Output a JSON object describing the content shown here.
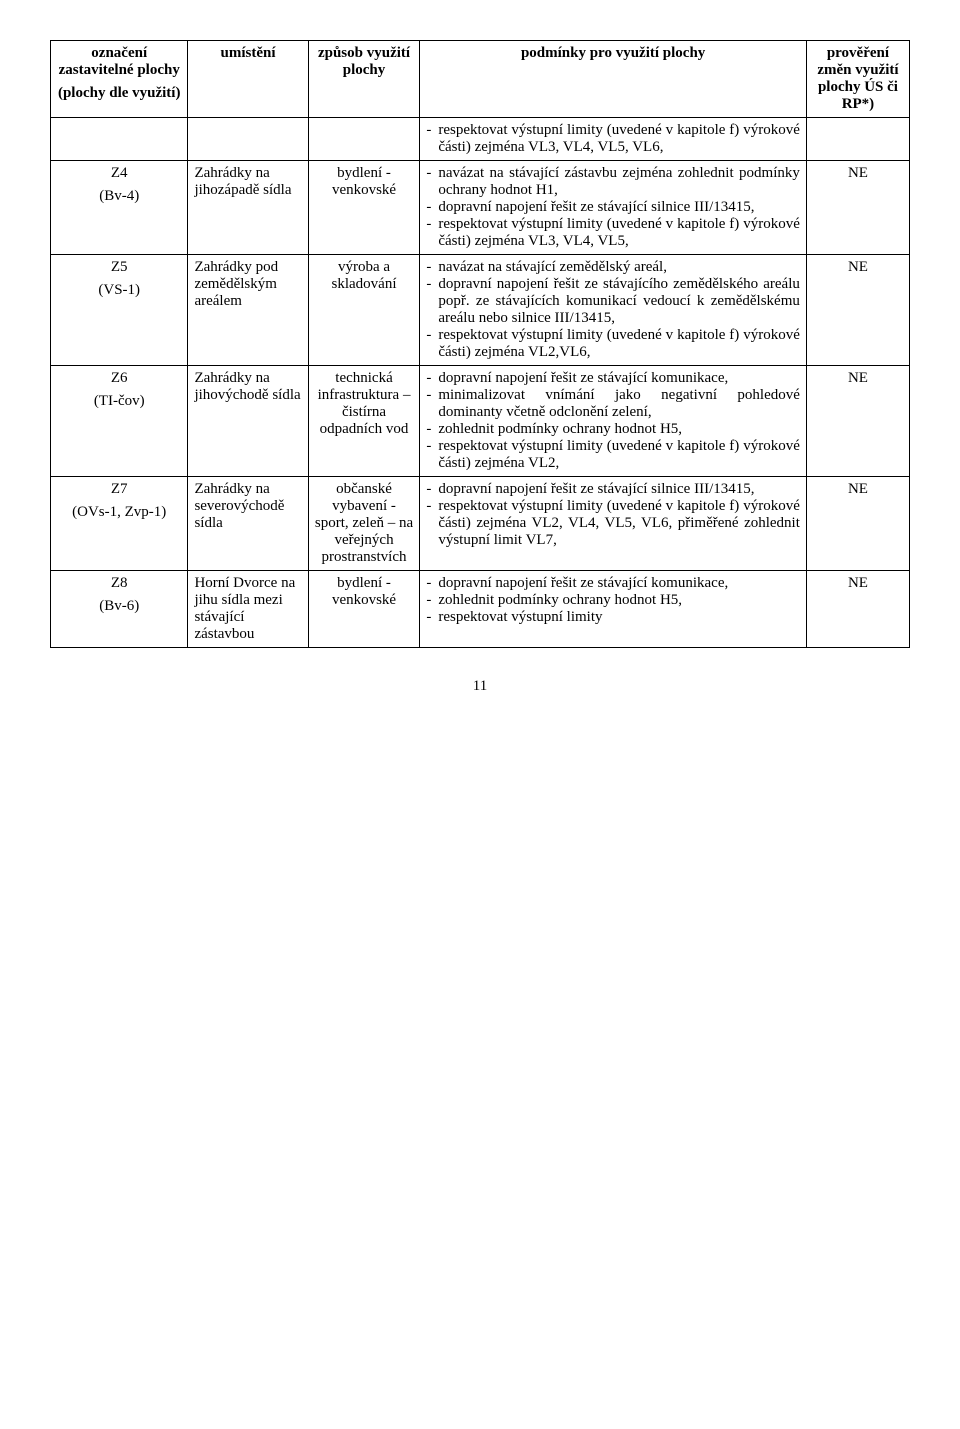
{
  "header": {
    "col1_l1": "označení zastavitelné plochy",
    "col1_l2": "(plochy dle využití)",
    "col2": "umístění",
    "col3": "způsob využití plochy",
    "col4": "podmínky pro využití plochy",
    "col5": "prověření změn využití plochy ÚS či RP*)"
  },
  "rows": [
    {
      "label_main": "",
      "label_sub": "",
      "place": "",
      "use": "",
      "cond": [
        "respektovat výstupní limity (uvedené v kapitole f) výrokové části) zejména VL3, VL4, VL5, VL6,"
      ],
      "check": ""
    },
    {
      "label_main": "Z4",
      "label_sub": "(Bv-4)",
      "place": "Zahrádky na jihozápadě sídla",
      "use": "bydlení - venkovské",
      "cond": [
        "navázat na stávající zástavbu zejména zohlednit podmínky ochrany hodnot H1,",
        "dopravní napojení řešit ze stávající silnice III/13415,",
        "respektovat výstupní limity (uvedené v kapitole f) výrokové části) zejména VL3, VL4, VL5,"
      ],
      "check": "NE"
    },
    {
      "label_main": "Z5",
      "label_sub": "(VS-1)",
      "place": "Zahrádky pod zemědělským areálem",
      "use": "výroba a skladování",
      "cond": [
        "navázat na stávající zemědělský areál,",
        "dopravní napojení řešit ze stávajícího zemědělského areálu popř. ze stávajících komunikací vedoucí k zemědělskému areálu nebo silnice III/13415,",
        "respektovat výstupní limity (uvedené v kapitole f) výrokové části) zejména VL2,VL6,"
      ],
      "check": "NE"
    },
    {
      "label_main": "Z6",
      "label_sub": "(TI-čov)",
      "place": "Zahrádky na jihovýchodě sídla",
      "use": "technická infrastruktura – čistírna odpadních vod",
      "cond": [
        "dopravní napojení řešit ze stávající komunikace,",
        "minimalizovat vnímání jako negativní pohledové dominanty včetně odclonění zelení,",
        "zohlednit podmínky ochrany hodnot H5,",
        "respektovat výstupní limity (uvedené v kapitole f) výrokové části) zejména VL2,"
      ],
      "check": "NE"
    },
    {
      "label_main": "Z7",
      "label_sub": "(OVs-1, Zvp-1)",
      "place": "Zahrádky na severovýchodě sídla",
      "use": "občanské vybavení - sport, zeleň – na veřejných prostranstvích",
      "cond": [
        "dopravní napojení řešit ze stávající silnice III/13415,",
        "respektovat výstupní limity (uvedené v kapitole f) výrokové části) zejména VL2, VL4, VL5, VL6, přiměřené zohlednit výstupní limit VL7,"
      ],
      "check": "NE"
    },
    {
      "label_main": "Z8",
      "label_sub": "(Bv-6)",
      "place": "Horní Dvorce na jihu sídla mezi stávající zástavbou",
      "use": "bydlení - venkovské",
      "cond": [
        "dopravní napojení řešit ze stávající komunikace,",
        "zohlednit podmínky ochrany hodnot H5,",
        "respektovat výstupní limity"
      ],
      "check": "NE"
    }
  ],
  "page_number": "11"
}
